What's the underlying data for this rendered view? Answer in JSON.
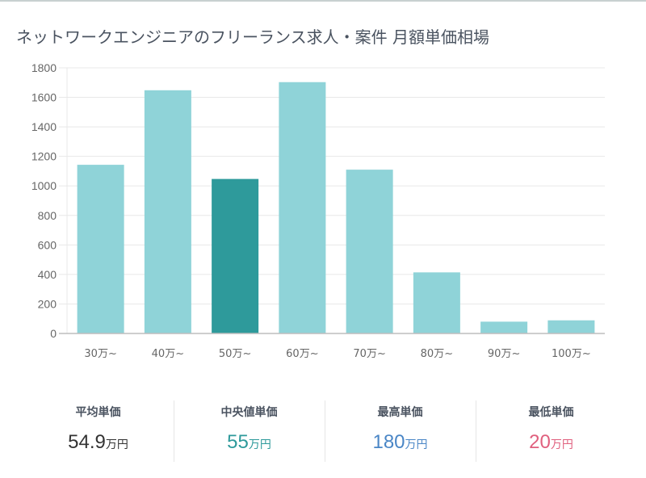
{
  "title": "ネットワークエンジニアのフリーランス求人・案件 月額単価相場",
  "colors": {
    "bar": "#8fd3d8",
    "bar_highlight": "#2e9a9b",
    "grid": "#e8e8e8",
    "axis": "#bdbdbd"
  },
  "chart_data": {
    "type": "bar",
    "title": "ネットワークエンジニアのフリーランス求人・案件 月額単価相場",
    "xlabel": "",
    "ylabel": "",
    "categories": [
      "30万~",
      "40万~",
      "50万~",
      "60万~",
      "70万~",
      "80万~",
      "90万~",
      "100万~"
    ],
    "values": [
      1143,
      1648,
      1047,
      1703,
      1110,
      414,
      80,
      89
    ],
    "highlight_index": 2,
    "ylim": [
      0,
      1800
    ],
    "yticks": [
      "0",
      "200",
      "400",
      "600",
      "800",
      "1000",
      "1200",
      "1400",
      "1600",
      "1800"
    ],
    "grid": true,
    "legend": "none"
  },
  "stats": [
    {
      "label": "平均単価",
      "value": "54.9",
      "unit": "万円",
      "color": "#333333"
    },
    {
      "label": "中央値単価",
      "value": "55",
      "unit": "万円",
      "color": "#2e9a9b"
    },
    {
      "label": "最高単価",
      "value": "180",
      "unit": "万円",
      "color": "#4a86c6"
    },
    {
      "label": "最低単価",
      "value": "20",
      "unit": "万円",
      "color": "#e0607e"
    }
  ]
}
